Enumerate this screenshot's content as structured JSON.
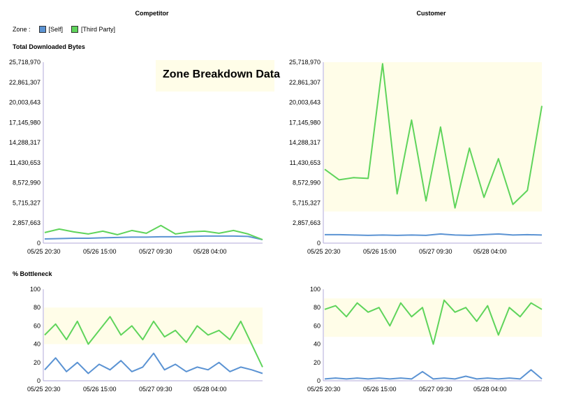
{
  "columns": {
    "left": "Competitor",
    "right": "Customer"
  },
  "legend": {
    "label": "Zone :",
    "items": [
      {
        "label": "[Self]",
        "color": "#5b93d3"
      },
      {
        "label": "[Third Party]",
        "color": "#5fd45b"
      }
    ]
  },
  "overlay": {
    "text": "Zone Breakdown Data"
  },
  "sections": {
    "bytes": "Total Downloaded Bytes",
    "bottleneck": "% Bottleneck"
  },
  "chart_data": [
    {
      "type": "line",
      "panel": "Competitor",
      "metric": "Total Downloaded Bytes",
      "ylim": [
        0,
        25718970
      ],
      "yticks": [
        "25,718,970",
        "22,861,307",
        "20,003,643",
        "17,145,980",
        "14,288,317",
        "11,430,653",
        "8,572,990",
        "5,715,327",
        "2,857,663",
        "0"
      ],
      "xticks": [
        "05/25 20:30",
        "05/26 15:00",
        "05/27 09:30",
        "05/28 04:00"
      ],
      "series": [
        {
          "name": "[Self]",
          "values": [
            600000,
            650000,
            700000,
            700000,
            750000,
            800000,
            850000,
            850000,
            900000,
            900000,
            950000,
            1000000,
            1000000,
            1000000,
            950000,
            500000
          ]
        },
        {
          "name": "[Third Party]",
          "values": [
            1500000,
            2000000,
            1600000,
            1300000,
            1700000,
            1200000,
            1800000,
            1400000,
            2500000,
            1300000,
            1600000,
            1700000,
            1400000,
            1800000,
            1300000,
            500000
          ]
        }
      ]
    },
    {
      "type": "line",
      "panel": "Customer",
      "metric": "Total Downloaded Bytes",
      "ylim": [
        0,
        25718970
      ],
      "yticks": [
        "25,718,970",
        "22,861,307",
        "20,003,643",
        "17,145,980",
        "14,288,317",
        "11,430,653",
        "8,572,990",
        "5,715,327",
        "2,857,663",
        "0"
      ],
      "xticks": [
        "05/25 20:30",
        "05/26 15:00",
        "05/27 09:30",
        "05/28 04:00"
      ],
      "series": [
        {
          "name": "[Self]",
          "values": [
            1200000,
            1200000,
            1150000,
            1100000,
            1150000,
            1100000,
            1150000,
            1100000,
            1300000,
            1150000,
            1100000,
            1200000,
            1300000,
            1150000,
            1200000,
            1150000
          ]
        },
        {
          "name": "[Third Party]",
          "values": [
            10500000,
            9000000,
            9300000,
            9200000,
            25500000,
            7000000,
            17500000,
            6000000,
            16500000,
            5000000,
            13500000,
            6500000,
            12000000,
            5500000,
            7500000,
            19500000
          ]
        }
      ]
    },
    {
      "type": "line",
      "panel": "Competitor",
      "metric": "% Bottleneck",
      "ylim": [
        0,
        100
      ],
      "yticks": [
        "100",
        "80",
        "60",
        "40",
        "20",
        "0"
      ],
      "xticks": [
        "05/25 20:30",
        "05/26 15:00",
        "05/27 09:30",
        "05/28 04:00"
      ],
      "series": [
        {
          "name": "[Self]",
          "values": [
            12,
            25,
            10,
            20,
            8,
            18,
            12,
            22,
            10,
            15,
            30,
            12,
            18,
            10,
            15,
            12,
            20,
            10,
            15,
            12,
            8
          ]
        },
        {
          "name": "[Third Party]",
          "values": [
            50,
            62,
            45,
            65,
            40,
            55,
            70,
            50,
            60,
            45,
            65,
            48,
            55,
            42,
            60,
            50,
            55,
            45,
            65,
            40,
            15
          ]
        }
      ]
    },
    {
      "type": "line",
      "panel": "Customer",
      "metric": "% Bottleneck",
      "ylim": [
        0,
        100
      ],
      "yticks": [
        "100",
        "80",
        "60",
        "40",
        "20",
        "0"
      ],
      "xticks": [
        "05/25 20:30",
        "05/26 15:00",
        "05/27 09:30",
        "05/28 04:00"
      ],
      "series": [
        {
          "name": "[Self]",
          "values": [
            2,
            3,
            2,
            3,
            2,
            3,
            2,
            3,
            2,
            10,
            2,
            3,
            2,
            5,
            2,
            3,
            2,
            3,
            2,
            12,
            2
          ]
        },
        {
          "name": "[Third Party]",
          "values": [
            78,
            82,
            70,
            85,
            75,
            80,
            60,
            85,
            70,
            80,
            40,
            88,
            75,
            80,
            65,
            82,
            50,
            80,
            70,
            85,
            78
          ]
        }
      ]
    }
  ]
}
